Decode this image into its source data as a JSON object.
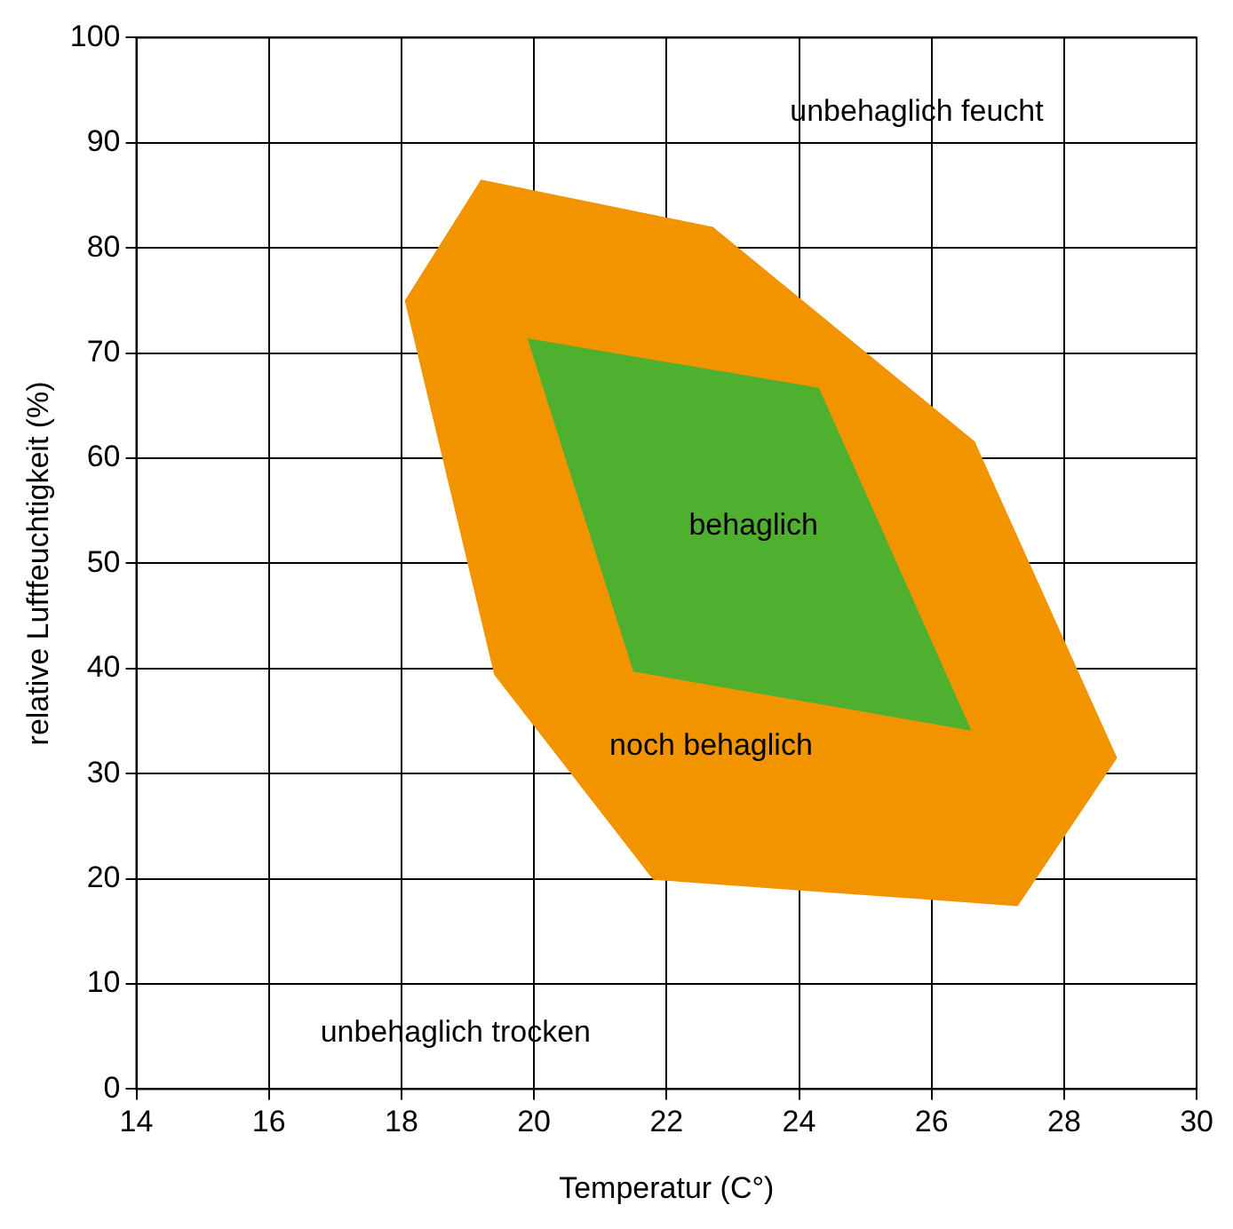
{
  "chart_data": {
    "type": "area",
    "xlabel": "Temperatur (C°)",
    "ylabel": "relative Luftfeuchtigkeit (%)",
    "series": [
      {
        "x": [
          19.2,
          22.7,
          26.65,
          28.8,
          27.3,
          21.8,
          19.4,
          18.05
        ],
        "values": [
          86.5,
          82,
          61.6,
          31.5,
          17.4,
          19.9,
          39.4,
          75
        ],
        "color": "#f29400"
      },
      {
        "x": [
          19.9,
          24.3,
          26.6,
          21.5
        ],
        "values": [
          71.4,
          66.7,
          34.1,
          39.7
        ],
        "color": "#4fb030"
      }
    ],
    "xlim": [
      14,
      30
    ],
    "xticks": [
      14,
      16,
      18,
      20,
      22,
      24,
      26,
      28,
      30
    ],
    "ylim": [
      0,
      100
    ],
    "yticks": [
      0,
      10,
      20,
      30,
      40,
      50,
      60,
      70,
      80,
      90,
      100
    ],
    "grid": true,
    "legend": false,
    "marker": "none",
    "annotations": [
      "unbehaglich feucht",
      "behaglich",
      "noch behaglich",
      "unbehaglich trocken"
    ]
  }
}
